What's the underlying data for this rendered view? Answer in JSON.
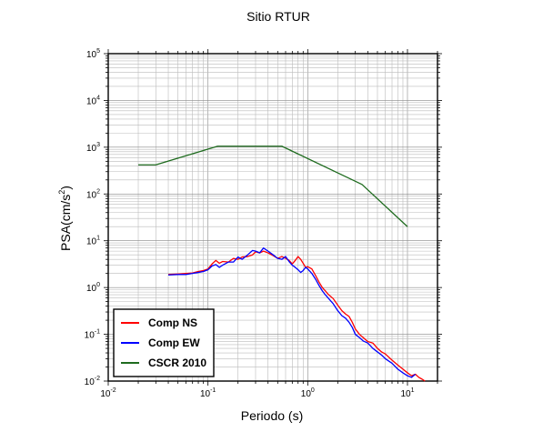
{
  "chart_data": {
    "type": "line",
    "title": "Sitio RTUR",
    "xlabel": "Periodo (s)",
    "ylabel_main": "PSA(cm/s",
    "ylabel_sup": "2",
    "ylabel_close": ")",
    "x_scale": "log",
    "y_scale": "log",
    "xlim": [
      0.01,
      20
    ],
    "ylim": [
      0.01,
      100000
    ],
    "x_ticks": [
      {
        "base": "10",
        "exp": "-2",
        "value": 0.01
      },
      {
        "base": "10",
        "exp": "-1",
        "value": 0.1
      },
      {
        "base": "10",
        "exp": "0",
        "value": 1
      },
      {
        "base": "10",
        "exp": "1",
        "value": 10
      }
    ],
    "y_ticks": [
      {
        "base": "10",
        "exp": "-2",
        "value": 0.01
      },
      {
        "base": "10",
        "exp": "-1",
        "value": 0.1
      },
      {
        "base": "10",
        "exp": "0",
        "value": 1
      },
      {
        "base": "10",
        "exp": "1",
        "value": 10
      },
      {
        "base": "10",
        "exp": "2",
        "value": 100
      },
      {
        "base": "10",
        "exp": "3",
        "value": 1000
      },
      {
        "base": "10",
        "exp": "4",
        "value": 10000
      },
      {
        "base": "10",
        "exp": "5",
        "value": 100000
      }
    ],
    "grid": true,
    "legend_position": "bottom-left",
    "series": [
      {
        "name": "Comp NS",
        "color": "#ff0000",
        "points": [
          [
            0.04,
            1.9
          ],
          [
            0.05,
            1.95
          ],
          [
            0.06,
            2.0
          ],
          [
            0.07,
            2.05
          ],
          [
            0.08,
            2.2
          ],
          [
            0.09,
            2.3
          ],
          [
            0.1,
            2.5
          ],
          [
            0.11,
            3.2
          ],
          [
            0.12,
            3.8
          ],
          [
            0.13,
            3.3
          ],
          [
            0.14,
            3.6
          ],
          [
            0.16,
            3.5
          ],
          [
            0.18,
            4.2
          ],
          [
            0.2,
            4.0
          ],
          [
            0.22,
            4.5
          ],
          [
            0.25,
            4.6
          ],
          [
            0.28,
            5.0
          ],
          [
            0.3,
            5.8
          ],
          [
            0.33,
            5.5
          ],
          [
            0.36,
            6.0
          ],
          [
            0.4,
            5.5
          ],
          [
            0.45,
            4.8
          ],
          [
            0.5,
            4.2
          ],
          [
            0.55,
            4.6
          ],
          [
            0.6,
            4.2
          ],
          [
            0.65,
            3.8
          ],
          [
            0.7,
            3.2
          ],
          [
            0.75,
            3.8
          ],
          [
            0.8,
            4.6
          ],
          [
            0.85,
            4.0
          ],
          [
            0.9,
            3.3
          ],
          [
            0.95,
            2.7
          ],
          [
            1.0,
            2.8
          ],
          [
            1.1,
            2.5
          ],
          [
            1.2,
            1.8
          ],
          [
            1.3,
            1.3
          ],
          [
            1.4,
            1.0
          ],
          [
            1.5,
            0.85
          ],
          [
            1.6,
            0.72
          ],
          [
            1.8,
            0.58
          ],
          [
            2.0,
            0.42
          ],
          [
            2.2,
            0.32
          ],
          [
            2.4,
            0.27
          ],
          [
            2.6,
            0.24
          ],
          [
            2.8,
            0.18
          ],
          [
            3.0,
            0.13
          ],
          [
            3.3,
            0.1
          ],
          [
            3.6,
            0.085
          ],
          [
            4.0,
            0.07
          ],
          [
            4.5,
            0.065
          ],
          [
            5.0,
            0.05
          ],
          [
            5.5,
            0.042
          ],
          [
            6.0,
            0.038
          ],
          [
            7.0,
            0.028
          ],
          [
            8.0,
            0.022
          ],
          [
            9.0,
            0.018
          ],
          [
            10.0,
            0.015
          ],
          [
            11.0,
            0.013
          ],
          [
            12.0,
            0.014
          ],
          [
            13.0,
            0.012
          ],
          [
            14.0,
            0.011
          ],
          [
            15.0,
            0.01
          ]
        ]
      },
      {
        "name": "Comp EW",
        "color": "#0000ff",
        "points": [
          [
            0.04,
            1.85
          ],
          [
            0.05,
            1.9
          ],
          [
            0.06,
            1.9
          ],
          [
            0.07,
            2.0
          ],
          [
            0.08,
            2.1
          ],
          [
            0.09,
            2.2
          ],
          [
            0.1,
            2.4
          ],
          [
            0.11,
            2.9
          ],
          [
            0.12,
            3.1
          ],
          [
            0.13,
            2.7
          ],
          [
            0.14,
            3.0
          ],
          [
            0.16,
            3.5
          ],
          [
            0.18,
            3.5
          ],
          [
            0.2,
            4.5
          ],
          [
            0.22,
            4.0
          ],
          [
            0.25,
            5.0
          ],
          [
            0.28,
            6.2
          ],
          [
            0.3,
            6.0
          ],
          [
            0.33,
            5.5
          ],
          [
            0.36,
            7.0
          ],
          [
            0.4,
            6.0
          ],
          [
            0.45,
            5.0
          ],
          [
            0.5,
            4.2
          ],
          [
            0.55,
            4.0
          ],
          [
            0.6,
            4.6
          ],
          [
            0.65,
            3.6
          ],
          [
            0.7,
            3.0
          ],
          [
            0.75,
            2.7
          ],
          [
            0.8,
            2.4
          ],
          [
            0.85,
            2.1
          ],
          [
            0.9,
            2.3
          ],
          [
            0.95,
            2.7
          ],
          [
            1.0,
            2.5
          ],
          [
            1.1,
            2.0
          ],
          [
            1.2,
            1.5
          ],
          [
            1.3,
            1.1
          ],
          [
            1.4,
            0.85
          ],
          [
            1.5,
            0.7
          ],
          [
            1.6,
            0.6
          ],
          [
            1.8,
            0.45
          ],
          [
            2.0,
            0.32
          ],
          [
            2.2,
            0.25
          ],
          [
            2.4,
            0.22
          ],
          [
            2.6,
            0.18
          ],
          [
            2.8,
            0.14
          ],
          [
            3.0,
            0.1
          ],
          [
            3.3,
            0.085
          ],
          [
            3.6,
            0.072
          ],
          [
            4.0,
            0.065
          ],
          [
            4.5,
            0.05
          ],
          [
            5.0,
            0.042
          ],
          [
            5.5,
            0.036
          ],
          [
            6.0,
            0.03
          ],
          [
            7.0,
            0.024
          ],
          [
            8.0,
            0.018
          ],
          [
            9.0,
            0.015
          ],
          [
            10.0,
            0.013
          ],
          [
            11.0,
            0.012
          ],
          [
            12.0,
            0.014
          ]
        ]
      },
      {
        "name": "CSCR 2010",
        "color": "#1e6b1e",
        "points": [
          [
            0.02,
            420
          ],
          [
            0.03,
            420
          ],
          [
            0.125,
            1050
          ],
          [
            0.55,
            1050
          ],
          [
            3.5,
            160
          ],
          [
            10.0,
            20
          ]
        ]
      }
    ]
  }
}
